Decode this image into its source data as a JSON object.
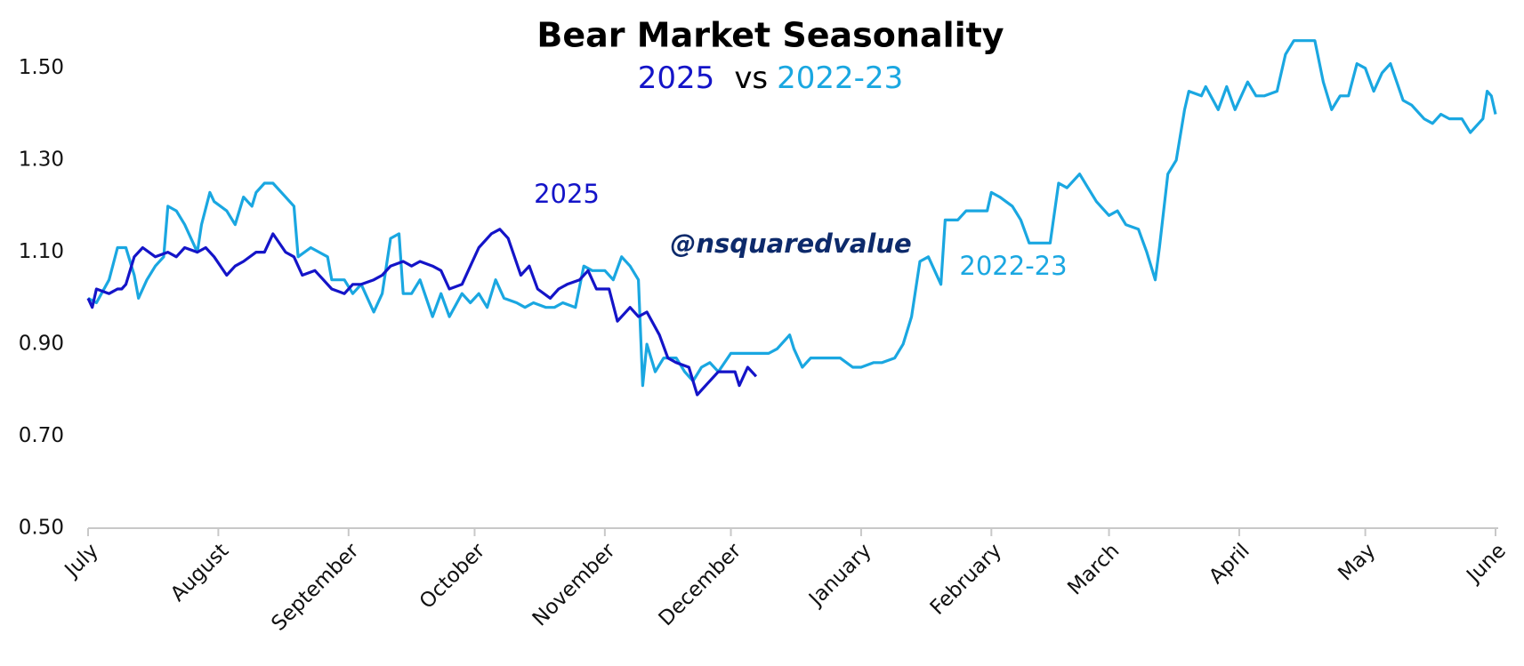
{
  "chart_data": {
    "type": "line",
    "title": "Bear Market Seasonality",
    "legend_separator": "vs",
    "annotations": [
      {
        "text": "2025",
        "color": "#1414c8"
      },
      {
        "text": "@nsquaredvalue",
        "color": "#0d2a6b"
      },
      {
        "text": "2022-23",
        "color": "#1aa7e1"
      }
    ],
    "xlim": [
      0,
      335
    ],
    "xticks": [
      {
        "value": 0,
        "label": "July"
      },
      {
        "value": 31,
        "label": "August"
      },
      {
        "value": 62,
        "label": "September"
      },
      {
        "value": 92,
        "label": "October"
      },
      {
        "value": 123,
        "label": "November"
      },
      {
        "value": 153,
        "label": "December"
      },
      {
        "value": 184,
        "label": "January"
      },
      {
        "value": 215,
        "label": "February"
      },
      {
        "value": 243,
        "label": "March"
      },
      {
        "value": 274,
        "label": "April"
      },
      {
        "value": 304,
        "label": "May"
      },
      {
        "value": 335,
        "label": "June"
      }
    ],
    "ylim": [
      0.5,
      1.6
    ],
    "yticks": [
      {
        "value": 0.5,
        "label": "0.50"
      },
      {
        "value": 0.7,
        "label": "0.70"
      },
      {
        "value": 0.9,
        "label": "0.90"
      },
      {
        "value": 1.1,
        "label": "1.10"
      },
      {
        "value": 1.3,
        "label": "1.30"
      },
      {
        "value": 1.5,
        "label": "1.50"
      }
    ],
    "grid": false,
    "series": [
      {
        "name": "2025",
        "color": "#1414c8",
        "x": [
          0,
          1,
          2,
          5,
          7,
          8,
          9,
          11,
          13,
          16,
          19,
          21,
          23,
          26,
          28,
          30,
          33,
          35,
          37,
          40,
          42,
          44,
          47,
          49,
          51,
          54,
          56,
          58,
          61,
          63,
          65,
          68,
          70,
          72,
          75,
          77,
          79,
          82,
          84,
          86,
          89,
          91,
          93,
          96,
          98,
          100,
          103,
          105,
          107,
          110,
          112,
          114,
          117,
          119,
          121,
          124,
          126,
          129,
          131,
          133,
          136,
          138,
          140,
          143,
          145,
          147,
          150,
          152,
          154,
          155,
          157,
          159
        ],
        "values": [
          1.0,
          0.98,
          1.02,
          1.01,
          1.02,
          1.02,
          1.03,
          1.09,
          1.11,
          1.09,
          1.1,
          1.09,
          1.11,
          1.1,
          1.11,
          1.09,
          1.05,
          1.07,
          1.08,
          1.1,
          1.1,
          1.14,
          1.1,
          1.09,
          1.05,
          1.06,
          1.04,
          1.02,
          1.01,
          1.03,
          1.03,
          1.04,
          1.05,
          1.07,
          1.08,
          1.07,
          1.08,
          1.07,
          1.06,
          1.02,
          1.03,
          1.07,
          1.11,
          1.14,
          1.15,
          1.13,
          1.05,
          1.07,
          1.02,
          1.0,
          1.02,
          1.03,
          1.04,
          1.06,
          1.02,
          1.02,
          0.95,
          0.98,
          0.96,
          0.97,
          0.92,
          0.87,
          0.86,
          0.85,
          0.79,
          0.81,
          0.84,
          0.84,
          0.84,
          0.81,
          0.85,
          0.83
        ]
      },
      {
        "name": "2022-23",
        "color": "#1aa7e1",
        "x": [
          0,
          2,
          5,
          7,
          9,
          11,
          12,
          14,
          16,
          18,
          19,
          21,
          23,
          26,
          27,
          29,
          30,
          33,
          35,
          37,
          39,
          40,
          42,
          44,
          47,
          49,
          50,
          53,
          55,
          57,
          58,
          61,
          63,
          65,
          68,
          70,
          72,
          74,
          75,
          77,
          79,
          82,
          84,
          86,
          89,
          91,
          93,
          95,
          97,
          99,
          102,
          104,
          106,
          109,
          111,
          113,
          116,
          118,
          120,
          123,
          125,
          127,
          129,
          131,
          132,
          133,
          135,
          137,
          140,
          142,
          144,
          146,
          148,
          150,
          153,
          155,
          157,
          160,
          162,
          164,
          167,
          168,
          170,
          172,
          175,
          177,
          179,
          182,
          184,
          187,
          189,
          192,
          194,
          196,
          198,
          200,
          203,
          204,
          207,
          209,
          211,
          214,
          215,
          217,
          220,
          222,
          224,
          226,
          229,
          231,
          233,
          236,
          238,
          240,
          243,
          245,
          247,
          250,
          252,
          254,
          255,
          257,
          259,
          261,
          262,
          265,
          266,
          269,
          271,
          273,
          276,
          278,
          280,
          283,
          285,
          287,
          290,
          292,
          294,
          296,
          298,
          300,
          302,
          304,
          306,
          308,
          310,
          313,
          315,
          318,
          320,
          322,
          324,
          327,
          329,
          332,
          333,
          334,
          335
        ],
        "values": [
          1.0,
          0.99,
          1.04,
          1.11,
          1.11,
          1.05,
          1.0,
          1.04,
          1.07,
          1.09,
          1.2,
          1.19,
          1.16,
          1.1,
          1.16,
          1.23,
          1.21,
          1.19,
          1.16,
          1.22,
          1.2,
          1.23,
          1.25,
          1.25,
          1.22,
          1.2,
          1.09,
          1.11,
          1.1,
          1.09,
          1.04,
          1.04,
          1.01,
          1.03,
          0.97,
          1.01,
          1.13,
          1.14,
          1.01,
          1.01,
          1.04,
          0.96,
          1.01,
          0.96,
          1.01,
          0.99,
          1.01,
          0.98,
          1.04,
          1.0,
          0.99,
          0.98,
          0.99,
          0.98,
          0.98,
          0.99,
          0.98,
          1.07,
          1.06,
          1.06,
          1.04,
          1.09,
          1.07,
          1.04,
          0.81,
          0.9,
          0.84,
          0.87,
          0.87,
          0.84,
          0.82,
          0.85,
          0.86,
          0.84,
          0.88,
          0.88,
          0.88,
          0.88,
          0.88,
          0.89,
          0.92,
          0.89,
          0.85,
          0.87,
          0.87,
          0.87,
          0.87,
          0.85,
          0.85,
          0.86,
          0.86,
          0.87,
          0.9,
          0.96,
          1.08,
          1.09,
          1.03,
          1.17,
          1.17,
          1.19,
          1.19,
          1.19,
          1.23,
          1.22,
          1.2,
          1.17,
          1.12,
          1.12,
          1.12,
          1.25,
          1.24,
          1.27,
          1.24,
          1.21,
          1.18,
          1.19,
          1.16,
          1.15,
          1.1,
          1.04,
          1.11,
          1.27,
          1.3,
          1.41,
          1.45,
          1.44,
          1.46,
          1.41,
          1.46,
          1.41,
          1.47,
          1.44,
          1.44,
          1.45,
          1.53,
          1.56,
          1.56,
          1.56,
          1.47,
          1.41,
          1.44,
          1.44,
          1.51,
          1.5,
          1.45,
          1.49,
          1.51,
          1.43,
          1.42,
          1.39,
          1.38,
          1.4,
          1.39,
          1.39,
          1.36,
          1.39,
          1.45,
          1.44,
          1.4
        ]
      }
    ]
  }
}
